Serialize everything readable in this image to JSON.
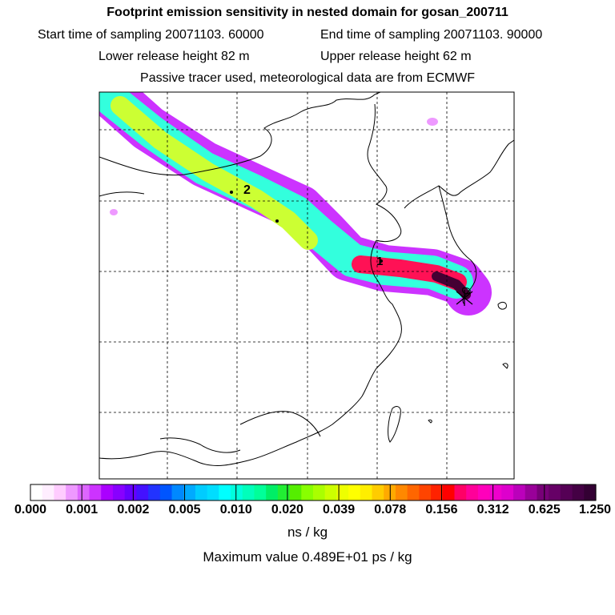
{
  "header": {
    "title": "Footprint emission sensitivity in nested domain for gosan_200711",
    "start_time": "Start time of sampling 20071103. 60000",
    "end_time": "End time of sampling 20071103. 90000",
    "lower_release": "Lower release height   82 m",
    "upper_release": "Upper release height   62 m",
    "tracer_note": "Passive tracer used, meteorological data are from ECMWF"
  },
  "map": {
    "markers": [
      {
        "label": "1"
      },
      {
        "label": "2"
      }
    ],
    "plume_colors": [
      "#cc33ff",
      "#33ffdd",
      "#ccff33",
      "#ff1155",
      "#440033"
    ]
  },
  "colorbar": {
    "segments": [
      "#ffffff",
      "#ffeeff",
      "#ffccff",
      "#ee99ff",
      "#dd66ff",
      "#cc33ff",
      "#aa00ff",
      "#8800ff",
      "#6600ff",
      "#4411ff",
      "#2233ff",
      "#0055ff",
      "#0088ff",
      "#00aaff",
      "#00ccff",
      "#00ddff",
      "#00ffff",
      "#00ffdd",
      "#00ffbb",
      "#00ff99",
      "#00ee66",
      "#22ee33",
      "#55ee00",
      "#88ff00",
      "#aaff00",
      "#ccff00",
      "#eeff00",
      "#ffff00",
      "#ffee00",
      "#ffcc00",
      "#ffaa00",
      "#ff8800",
      "#ff6600",
      "#ff4400",
      "#ff2200",
      "#ff0000",
      "#ff0066",
      "#ff0099",
      "#ff00bb",
      "#ee00cc",
      "#dd00cc",
      "#bb00bb",
      "#990099",
      "#770077",
      "#660066",
      "#550055",
      "#440044",
      "#330033"
    ],
    "tick_labels": [
      "0.000",
      "0.001",
      "0.002",
      "0.005",
      "0.010",
      "0.020",
      "0.039",
      "0.078",
      "0.156",
      "0.312",
      "0.625",
      "1.250"
    ],
    "unit": "ns / kg",
    "max_value_text": "Maximum value  0.489E+01 ps / kg"
  }
}
